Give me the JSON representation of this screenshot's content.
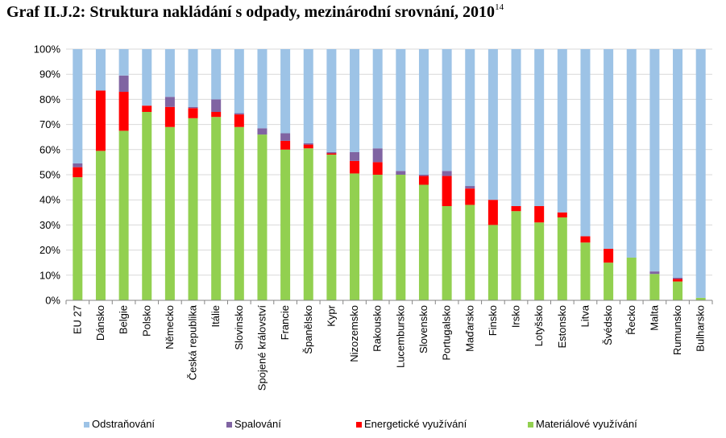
{
  "title": "Graf II.J.2: Struktura nakládání s odpady, mezinárodní srovnání, 2010",
  "title_footnote": "14",
  "chart_data": {
    "type": "bar",
    "stacked": true,
    "categories": [
      "EU 27",
      "Dánsko",
      "Belgie",
      "Polsko",
      "Německo",
      "Česká republika",
      "Itálie",
      "Slovinsko",
      "Spojené království",
      "Francie",
      "Španělsko",
      "Kypr",
      "Nizozemsko",
      "Rakousko",
      "Lucembursko",
      "Slovensko",
      "Portugalsko",
      "Maďarsko",
      "Finsko",
      "Irsko",
      "Lotyšsko",
      "Estonsko",
      "Litva",
      "Švédsko",
      "Řecko",
      "Malta",
      "Rumunsko",
      "Bulharsko"
    ],
    "series": [
      {
        "name": "Materiálové využívání",
        "color": "#92d050",
        "values": [
          49,
          59.5,
          67.5,
          75,
          69,
          72.5,
          73,
          69,
          66,
          60,
          60.5,
          58,
          50.5,
          50,
          50,
          46,
          37.5,
          38,
          30,
          35.5,
          31,
          33,
          23,
          15,
          17,
          10.5,
          7.5,
          1
        ]
      },
      {
        "name": "Energetické využívání",
        "color": "#ff0000",
        "values": [
          4,
          24,
          15.5,
          2.5,
          8,
          4,
          2,
          5,
          0,
          3.5,
          1.5,
          0.5,
          5,
          5,
          0,
          3.5,
          12,
          6.5,
          10,
          2,
          6.5,
          2,
          2.5,
          5.5,
          0,
          0,
          1,
          0
        ]
      },
      {
        "name": "Spalování",
        "color": "#8064a2",
        "values": [
          1.5,
          0,
          6.5,
          0,
          4,
          0.5,
          5,
          0.5,
          2.5,
          3,
          0.5,
          0.5,
          3.5,
          5.5,
          1.5,
          0.5,
          2,
          1,
          0,
          0,
          0,
          0,
          0,
          0,
          0,
          1,
          0.5,
          0
        ]
      },
      {
        "name": "Odstraňování",
        "color": "#9dc3e6",
        "values": [
          45.5,
          16.5,
          10.5,
          22.5,
          19,
          23,
          20,
          25.5,
          31.5,
          33.5,
          37.5,
          41,
          41,
          39.5,
          48.5,
          50,
          48.5,
          54.5,
          60,
          62.5,
          62.5,
          65,
          74.5,
          79.5,
          83,
          88.5,
          91,
          99
        ]
      }
    ],
    "y_ticks": [
      "0%",
      "10%",
      "20%",
      "30%",
      "40%",
      "50%",
      "60%",
      "70%",
      "80%",
      "90%",
      "100%"
    ],
    "ylim": [
      0,
      100
    ],
    "grid": true,
    "legend_order": [
      "Odstraňování",
      "Spalování",
      "Energetické využívání",
      "Materiálové využívání"
    ],
    "legend_position": "bottom"
  }
}
